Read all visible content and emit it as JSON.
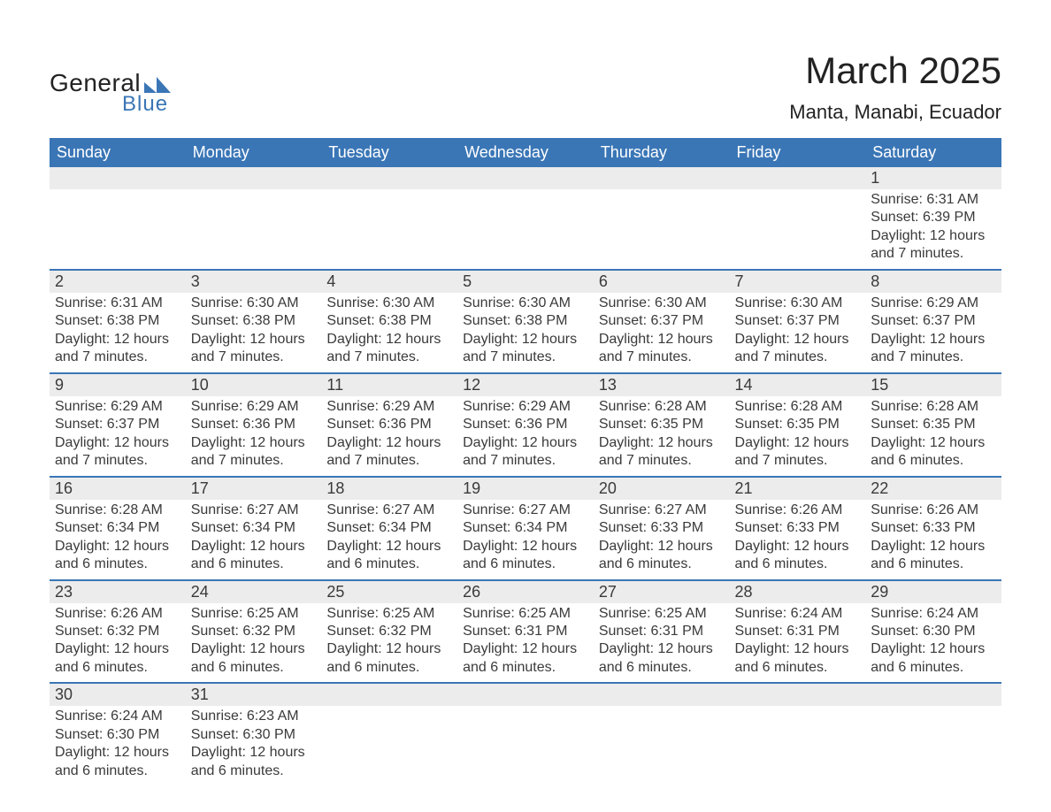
{
  "brand": {
    "line1": "General",
    "line2": "Blue",
    "text_color": "#222222",
    "accent_color": "#3a76b6"
  },
  "title": "March 2025",
  "location": "Manta, Manabi, Ecuador",
  "styling": {
    "header_bg": "#3a76b6",
    "header_text": "#ffffff",
    "daynum_bg": "#ececec",
    "row_divider": "#3a76b6",
    "body_text": "#3a3a3a",
    "page_bg": "#ffffff",
    "title_fontsize": 42,
    "location_fontsize": 22,
    "dayheader_fontsize": 18,
    "cell_fontsize": 16
  },
  "day_headers": [
    "Sunday",
    "Monday",
    "Tuesday",
    "Wednesday",
    "Thursday",
    "Friday",
    "Saturday"
  ],
  "labels": {
    "sunrise": "Sunrise:",
    "sunset": "Sunset:",
    "daylight": "Daylight:"
  },
  "weeks": [
    [
      null,
      null,
      null,
      null,
      null,
      null,
      {
        "n": "1",
        "sunrise": "6:31 AM",
        "sunset": "6:39 PM",
        "daylight": "12 hours and 7 minutes."
      }
    ],
    [
      {
        "n": "2",
        "sunrise": "6:31 AM",
        "sunset": "6:38 PM",
        "daylight": "12 hours and 7 minutes."
      },
      {
        "n": "3",
        "sunrise": "6:30 AM",
        "sunset": "6:38 PM",
        "daylight": "12 hours and 7 minutes."
      },
      {
        "n": "4",
        "sunrise": "6:30 AM",
        "sunset": "6:38 PM",
        "daylight": "12 hours and 7 minutes."
      },
      {
        "n": "5",
        "sunrise": "6:30 AM",
        "sunset": "6:38 PM",
        "daylight": "12 hours and 7 minutes."
      },
      {
        "n": "6",
        "sunrise": "6:30 AM",
        "sunset": "6:37 PM",
        "daylight": "12 hours and 7 minutes."
      },
      {
        "n": "7",
        "sunrise": "6:30 AM",
        "sunset": "6:37 PM",
        "daylight": "12 hours and 7 minutes."
      },
      {
        "n": "8",
        "sunrise": "6:29 AM",
        "sunset": "6:37 PM",
        "daylight": "12 hours and 7 minutes."
      }
    ],
    [
      {
        "n": "9",
        "sunrise": "6:29 AM",
        "sunset": "6:37 PM",
        "daylight": "12 hours and 7 minutes."
      },
      {
        "n": "10",
        "sunrise": "6:29 AM",
        "sunset": "6:36 PM",
        "daylight": "12 hours and 7 minutes."
      },
      {
        "n": "11",
        "sunrise": "6:29 AM",
        "sunset": "6:36 PM",
        "daylight": "12 hours and 7 minutes."
      },
      {
        "n": "12",
        "sunrise": "6:29 AM",
        "sunset": "6:36 PM",
        "daylight": "12 hours and 7 minutes."
      },
      {
        "n": "13",
        "sunrise": "6:28 AM",
        "sunset": "6:35 PM",
        "daylight": "12 hours and 7 minutes."
      },
      {
        "n": "14",
        "sunrise": "6:28 AM",
        "sunset": "6:35 PM",
        "daylight": "12 hours and 7 minutes."
      },
      {
        "n": "15",
        "sunrise": "6:28 AM",
        "sunset": "6:35 PM",
        "daylight": "12 hours and 6 minutes."
      }
    ],
    [
      {
        "n": "16",
        "sunrise": "6:28 AM",
        "sunset": "6:34 PM",
        "daylight": "12 hours and 6 minutes."
      },
      {
        "n": "17",
        "sunrise": "6:27 AM",
        "sunset": "6:34 PM",
        "daylight": "12 hours and 6 minutes."
      },
      {
        "n": "18",
        "sunrise": "6:27 AM",
        "sunset": "6:34 PM",
        "daylight": "12 hours and 6 minutes."
      },
      {
        "n": "19",
        "sunrise": "6:27 AM",
        "sunset": "6:34 PM",
        "daylight": "12 hours and 6 minutes."
      },
      {
        "n": "20",
        "sunrise": "6:27 AM",
        "sunset": "6:33 PM",
        "daylight": "12 hours and 6 minutes."
      },
      {
        "n": "21",
        "sunrise": "6:26 AM",
        "sunset": "6:33 PM",
        "daylight": "12 hours and 6 minutes."
      },
      {
        "n": "22",
        "sunrise": "6:26 AM",
        "sunset": "6:33 PM",
        "daylight": "12 hours and 6 minutes."
      }
    ],
    [
      {
        "n": "23",
        "sunrise": "6:26 AM",
        "sunset": "6:32 PM",
        "daylight": "12 hours and 6 minutes."
      },
      {
        "n": "24",
        "sunrise": "6:25 AM",
        "sunset": "6:32 PM",
        "daylight": "12 hours and 6 minutes."
      },
      {
        "n": "25",
        "sunrise": "6:25 AM",
        "sunset": "6:32 PM",
        "daylight": "12 hours and 6 minutes."
      },
      {
        "n": "26",
        "sunrise": "6:25 AM",
        "sunset": "6:31 PM",
        "daylight": "12 hours and 6 minutes."
      },
      {
        "n": "27",
        "sunrise": "6:25 AM",
        "sunset": "6:31 PM",
        "daylight": "12 hours and 6 minutes."
      },
      {
        "n": "28",
        "sunrise": "6:24 AM",
        "sunset": "6:31 PM",
        "daylight": "12 hours and 6 minutes."
      },
      {
        "n": "29",
        "sunrise": "6:24 AM",
        "sunset": "6:30 PM",
        "daylight": "12 hours and 6 minutes."
      }
    ],
    [
      {
        "n": "30",
        "sunrise": "6:24 AM",
        "sunset": "6:30 PM",
        "daylight": "12 hours and 6 minutes."
      },
      {
        "n": "31",
        "sunrise": "6:23 AM",
        "sunset": "6:30 PM",
        "daylight": "12 hours and 6 minutes."
      },
      null,
      null,
      null,
      null,
      null
    ]
  ]
}
